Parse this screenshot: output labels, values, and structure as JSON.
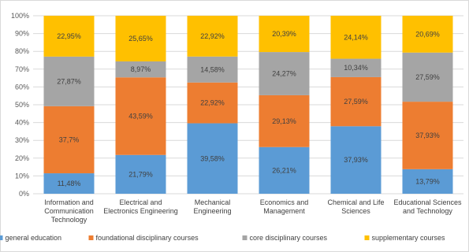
{
  "chart_data": {
    "type": "bar",
    "stacked": true,
    "percent": true,
    "categories": [
      [
        "Information and",
        "Communication",
        "Technology"
      ],
      [
        "Electrical and",
        "Electronics Engineering"
      ],
      [
        "Mechanical",
        "Engineering"
      ],
      [
        "Economics and",
        "Management"
      ],
      [
        "Chemical and Life",
        "Sciences"
      ],
      [
        "Educational Sciences",
        "and Technology"
      ]
    ],
    "series": [
      {
        "name": "general education",
        "color": "#5B9BD5",
        "values": [
          11.48,
          21.79,
          39.58,
          26.21,
          37.93,
          13.79
        ],
        "labels": [
          "11,48%",
          "21,79%",
          "39,58%",
          "26,21%",
          "37,93%",
          "13,79%"
        ]
      },
      {
        "name": "foundational disciplinary courses",
        "color": "#ED7D31",
        "values": [
          37.7,
          43.59,
          22.92,
          29.13,
          27.59,
          37.93
        ],
        "labels": [
          "37,7%",
          "43,59%",
          "22,92%",
          "29,13%",
          "27,59%",
          "37,93%"
        ]
      },
      {
        "name": "core disciplinary courses",
        "color": "#A5A5A5",
        "values": [
          27.87,
          8.97,
          14.58,
          24.27,
          10.34,
          27.59
        ],
        "labels": [
          "27,87%",
          "8,97%",
          "14,58%",
          "24,27%",
          "10,34%",
          "27,59%"
        ]
      },
      {
        "name": "supplementary courses",
        "color": "#FFC000",
        "values": [
          22.95,
          25.65,
          22.92,
          20.39,
          24.14,
          20.69
        ],
        "labels": [
          "22,95%",
          "25,65%",
          "22,92%",
          "20,39%",
          "24,14%",
          "20,69%"
        ]
      }
    ],
    "ylim": [
      0,
      100
    ],
    "yticks": [
      "0%",
      "10%",
      "20%",
      "30%",
      "40%",
      "50%",
      "60%",
      "70%",
      "80%",
      "90%",
      "100%"
    ],
    "grid": true,
    "legend_position": "bottom"
  }
}
